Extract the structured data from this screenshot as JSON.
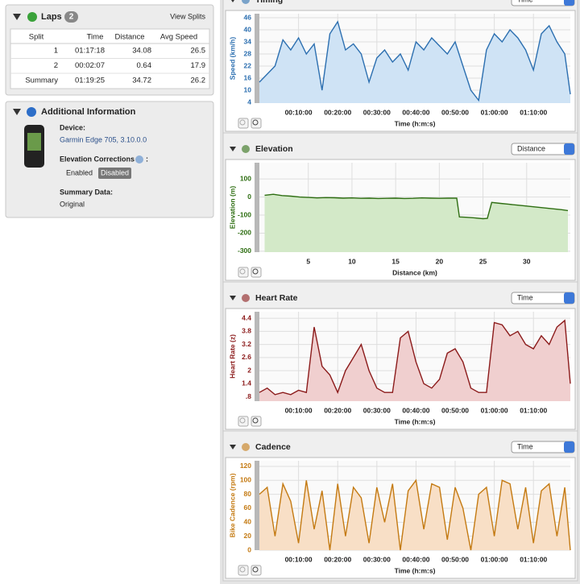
{
  "laps": {
    "title": "Laps",
    "count": "2",
    "link": "View Splits",
    "columns": [
      "Split",
      "Time",
      "Distance",
      "Avg Speed"
    ],
    "rows": [
      [
        "1",
        "01:17:18",
        "34.08",
        "26.5"
      ],
      [
        "2",
        "00:02:07",
        "0.64",
        "17.9"
      ],
      [
        "Summary",
        "01:19:25",
        "34.72",
        "26.2"
      ]
    ]
  },
  "info": {
    "title": "Additional Information",
    "device_label": "Device:",
    "device": "Garmin Edge 705, 3.10.0.0",
    "elevation_label": "Elevation Corrections",
    "elevation_suffix": ":",
    "options": [
      "Enabled",
      "Disabled"
    ],
    "summary_label": "Summary Data:",
    "summary": "Original"
  },
  "charts": [
    {
      "type": "area",
      "title": "Timing",
      "selector": "Time",
      "y_label": "Speed (km/h)",
      "x_label": "Time (h:m:s)",
      "color": "#2c6fb0",
      "fill": "#cfe3f5",
      "xlim": [
        0,
        4765
      ],
      "ylim": [
        3.6,
        48
      ],
      "yticks": [
        4,
        10,
        16,
        22,
        28,
        34,
        40,
        46
      ],
      "xticks": [
        {
          "value": 600,
          "label": "00:10:00"
        },
        {
          "value": 1200,
          "label": "00:20:00"
        },
        {
          "value": 1800,
          "label": "00:30:00"
        },
        {
          "value": 2400,
          "label": "00:40:00"
        },
        {
          "value": 3000,
          "label": "00:50:00"
        },
        {
          "value": 3600,
          "label": "01:00:00"
        },
        {
          "value": 4200,
          "label": "01:10:00"
        }
      ],
      "x": [
        0,
        120,
        240,
        360,
        480,
        600,
        720,
        840,
        960,
        1080,
        1200,
        1320,
        1440,
        1560,
        1680,
        1800,
        1920,
        2040,
        2160,
        2280,
        2400,
        2520,
        2640,
        2760,
        2880,
        3000,
        3120,
        3240,
        3360,
        3480,
        3600,
        3720,
        3840,
        3960,
        4080,
        4200,
        4320,
        4440,
        4560,
        4680,
        4765
      ],
      "values": [
        14,
        18,
        22,
        35,
        30,
        36,
        28,
        33,
        10,
        38,
        44,
        30,
        33,
        28,
        14,
        26,
        30,
        24,
        28,
        20,
        34,
        30,
        36,
        32,
        28,
        34,
        22,
        10,
        5,
        30,
        38,
        34,
        40,
        36,
        30,
        20,
        38,
        42,
        34,
        28,
        8
      ]
    },
    {
      "type": "area",
      "title": "Elevation",
      "selector": "Distance",
      "y_label": "Elevation (m)",
      "x_label": "Distance (km)",
      "color": "#2e6e12",
      "fill": "#d3e9c8",
      "xlim": [
        -0.6,
        35
      ],
      "ylim": [
        -305,
        190
      ],
      "yticks": [
        -300,
        -200,
        -100,
        0,
        100
      ],
      "xticks": [
        5,
        10,
        15,
        20,
        25,
        30
      ],
      "x": [
        0,
        1,
        2,
        3,
        4,
        5,
        6,
        7,
        8,
        9,
        10,
        11,
        12,
        13,
        14,
        15,
        16,
        17,
        18,
        19,
        20,
        21,
        22,
        22.3,
        23,
        24,
        25,
        25.5,
        26,
        27,
        28,
        29,
        30,
        31,
        32,
        33,
        34,
        34.72
      ],
      "values": [
        10,
        15,
        8,
        5,
        0,
        -2,
        -5,
        -3,
        -4,
        -6,
        -5,
        -7,
        -6,
        -8,
        -7,
        -6,
        -8,
        -7,
        -5,
        -6,
        -7,
        -6,
        -6,
        -110,
        -112,
        -115,
        -120,
        -118,
        -30,
        -35,
        -40,
        -45,
        -50,
        -55,
        -60,
        -65,
        -70,
        -75
      ]
    },
    {
      "type": "area",
      "title": "Heart Rate",
      "selector": "Time",
      "y_label": "Heart Rate (z)",
      "x_label": "Time (h:m:s)",
      "color": "#8b1a1a",
      "fill": "#f0cfcf",
      "xlim": [
        0,
        4765
      ],
      "ylim": [
        0.6,
        4.7
      ],
      "yticks": [
        {
          "value": 0.8,
          "label": ".8"
        },
        1.4,
        2,
        2.6,
        3.2,
        3.8,
        4.4
      ],
      "xticks": [
        {
          "value": 600,
          "label": "00:10:00"
        },
        {
          "value": 1200,
          "label": "00:20:00"
        },
        {
          "value": 1800,
          "label": "00:30:00"
        },
        {
          "value": 2400,
          "label": "00:40:00"
        },
        {
          "value": 3000,
          "label": "00:50:00"
        },
        {
          "value": 3600,
          "label": "01:00:00"
        },
        {
          "value": 4200,
          "label": "01:10:00"
        }
      ],
      "x": [
        0,
        120,
        240,
        360,
        480,
        600,
        720,
        840,
        960,
        1080,
        1200,
        1320,
        1440,
        1560,
        1680,
        1800,
        1920,
        2040,
        2160,
        2280,
        2400,
        2520,
        2640,
        2760,
        2880,
        3000,
        3120,
        3240,
        3360,
        3480,
        3600,
        3720,
        3840,
        3960,
        4080,
        4200,
        4320,
        4440,
        4560,
        4680,
        4765
      ],
      "values": [
        1.0,
        1.2,
        0.9,
        1.0,
        0.9,
        1.1,
        1.0,
        4.0,
        2.2,
        1.8,
        1.0,
        2.0,
        2.6,
        3.2,
        2.0,
        1.2,
        1.0,
        1.0,
        3.5,
        3.8,
        2.4,
        1.4,
        1.2,
        1.6,
        2.8,
        3.0,
        2.4,
        1.2,
        1.0,
        1.0,
        4.2,
        4.1,
        3.6,
        3.8,
        3.2,
        3.0,
        3.6,
        3.2,
        4.0,
        4.3,
        1.4
      ]
    },
    {
      "type": "area",
      "title": "Cadence",
      "selector": "Time",
      "y_label": "Bike Cadence (rpm)",
      "x_label": "Time (h:m:s)",
      "color": "#c47a12",
      "fill": "#f8dfc6",
      "xlim": [
        0,
        4765
      ],
      "ylim": [
        0,
        128
      ],
      "yticks": [
        0,
        20,
        40,
        60,
        80,
        100,
        120
      ],
      "xticks": [
        {
          "value": 600,
          "label": "00:10:00"
        },
        {
          "value": 1200,
          "label": "00:20:00"
        },
        {
          "value": 1800,
          "label": "00:30:00"
        },
        {
          "value": 2400,
          "label": "00:40:00"
        },
        {
          "value": 3000,
          "label": "00:50:00"
        },
        {
          "value": 3600,
          "label": "01:00:00"
        },
        {
          "value": 4200,
          "label": "01:10:00"
        }
      ],
      "x": [
        0,
        120,
        240,
        360,
        480,
        600,
        720,
        840,
        960,
        1080,
        1200,
        1320,
        1440,
        1560,
        1680,
        1800,
        1920,
        2040,
        2160,
        2280,
        2400,
        2520,
        2640,
        2760,
        2880,
        3000,
        3120,
        3240,
        3360,
        3480,
        3600,
        3720,
        3840,
        3960,
        4080,
        4200,
        4320,
        4440,
        4560,
        4680,
        4765
      ],
      "values": [
        80,
        90,
        20,
        95,
        70,
        10,
        100,
        30,
        85,
        0,
        95,
        20,
        90,
        75,
        10,
        90,
        40,
        95,
        0,
        85,
        100,
        30,
        95,
        90,
        15,
        90,
        60,
        0,
        80,
        90,
        20,
        100,
        95,
        30,
        90,
        10,
        85,
        95,
        20,
        90,
        0
      ]
    }
  ]
}
